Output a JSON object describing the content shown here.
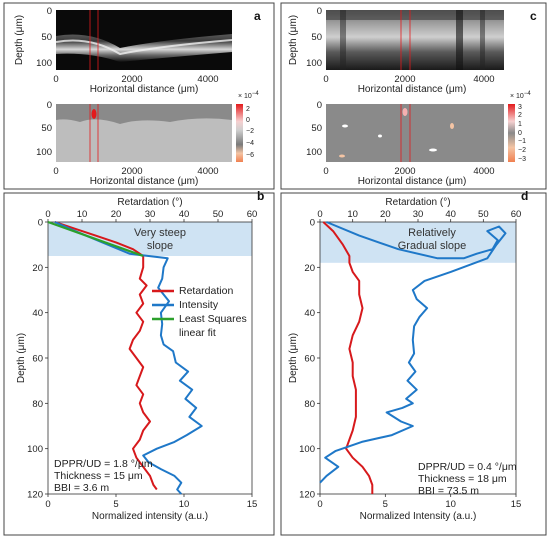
{
  "panels": {
    "a": {
      "letter": "a",
      "top_ylabel": "Depth (μm)",
      "top_xlabel": "Horizontal distance (μm)",
      "bot_xlabel": "Horizontal distance (μm)",
      "top_yticks": [
        "0",
        "50",
        "100"
      ],
      "bot_yticks": [
        "0",
        "50",
        "100"
      ],
      "xticks": [
        "0",
        "2000",
        "4000"
      ],
      "scale_exp": "× 10",
      "scale_pow": "−4",
      "scale_ticks": [
        "2",
        "0",
        "−2",
        "−4",
        "−6"
      ]
    },
    "c": {
      "letter": "c",
      "top_ylabel": "Depth (μm)",
      "top_xlabel": "Horizontal distance (μm)",
      "bot_xlabel": "Horizontal distance (μm)",
      "top_yticks": [
        "0",
        "50",
        "100"
      ],
      "bot_yticks": [
        "0",
        "50",
        "100"
      ],
      "xticks": [
        "0",
        "2000",
        "4000"
      ],
      "scale_exp": "× 10",
      "scale_pow": "−4",
      "scale_ticks": [
        "3",
        "2",
        "1",
        "0",
        "−1",
        "−2",
        "−3"
      ]
    }
  },
  "colors": {
    "retardation": "#d7191c",
    "intensity": "#1f78c8",
    "fit": "#2ca02c",
    "slope_band": "#cfe3f3",
    "depolar_map": "#8a8a8a"
  },
  "chart_data": [
    {
      "type": "line",
      "panel": "b",
      "letter": "b",
      "top_xlabel": "Retardation (°)",
      "bottom_xlabel": "Normalized intensity (a.u.)",
      "ylabel": "Depth (μm)",
      "retardation_range": [
        0,
        60
      ],
      "retardation_ticks": [
        "0",
        "10",
        "20",
        "30",
        "40",
        "50",
        "60"
      ],
      "intensity_range": [
        0,
        15
      ],
      "intensity_ticks": [
        "0",
        "5",
        "10",
        "15"
      ],
      "depth_range": [
        0,
        120
      ],
      "depth_ticks": [
        "0",
        "20",
        "40",
        "60",
        "80",
        "100",
        "120"
      ],
      "slope_band_depth": [
        0,
        15
      ],
      "slope_label": [
        "Very steep",
        "slope"
      ],
      "legend": [
        "Retardation",
        "Intensity",
        "Least Squares linear fit"
      ],
      "legend_lines": [
        "Retardation",
        "Intensity",
        "Least Squares",
        "linear fit"
      ],
      "annotations": [
        "DPPR/UD = 1.8 °/μm",
        "Thickness = 15 μm",
        "BBI =  3.6 m"
      ],
      "series": [
        {
          "name": "Retardation",
          "axis": "retardation",
          "points": [
            [
              2,
              0
            ],
            [
              8,
              3
            ],
            [
              14,
              6
            ],
            [
              20,
              9
            ],
            [
              25,
              12
            ],
            [
              28,
              15
            ],
            [
              28,
              20
            ],
            [
              27,
              25
            ],
            [
              29,
              28
            ],
            [
              27,
              32
            ],
            [
              28,
              36
            ],
            [
              26,
              40
            ],
            [
              28,
              44
            ],
            [
              27,
              48
            ],
            [
              25,
              52
            ],
            [
              24,
              56
            ],
            [
              26,
              60
            ],
            [
              28,
              64
            ],
            [
              27,
              68
            ],
            [
              26,
              72
            ],
            [
              28,
              76
            ],
            [
              27,
              80
            ],
            [
              28,
              84
            ],
            [
              30,
              88
            ],
            [
              28,
              92
            ],
            [
              27,
              96
            ],
            [
              25,
              100
            ],
            [
              26,
              104
            ],
            [
              28,
              108
            ],
            [
              30,
              112
            ],
            [
              31,
              116
            ],
            [
              32,
              118
            ]
          ]
        },
        {
          "name": "Intensity",
          "axis": "intensity",
          "points": [
            [
              0.5,
              0
            ],
            [
              2,
              4
            ],
            [
              4,
              9
            ],
            [
              6,
              14
            ],
            [
              8.8,
              16
            ],
            [
              8.5,
              20
            ],
            [
              8.4,
              25
            ],
            [
              8.1,
              29
            ],
            [
              8.9,
              35
            ],
            [
              8.3,
              40
            ],
            [
              8.4,
              45
            ],
            [
              8.3,
              50
            ],
            [
              8.5,
              54
            ],
            [
              9.2,
              57
            ],
            [
              9.4,
              62
            ],
            [
              10.3,
              66
            ],
            [
              9.7,
              70
            ],
            [
              10.6,
              74
            ],
            [
              10.1,
              78
            ],
            [
              10.9,
              82
            ],
            [
              10.4,
              86
            ],
            [
              11.3,
              90
            ],
            [
              10.2,
              94
            ],
            [
              9.3,
              97
            ],
            [
              8,
              100
            ],
            [
              7,
              103
            ],
            [
              7.4,
              106
            ],
            [
              8.3,
              109
            ],
            [
              9.3,
              112
            ],
            [
              9.8,
              115
            ],
            [
              9.5,
              118
            ],
            [
              9.8,
              120
            ]
          ]
        },
        {
          "name": "Least Squares linear fit",
          "axis": "retardation",
          "points": [
            [
              0,
              0
            ],
            [
              28,
              15
            ]
          ]
        }
      ]
    },
    {
      "type": "line",
      "panel": "d",
      "letter": "d",
      "top_xlabel": "Retardation (°)",
      "bottom_xlabel": "Normalized Intensity (a.u.)",
      "ylabel": "Depth (μm)",
      "retardation_range": [
        0,
        60
      ],
      "retardation_ticks": [
        "0",
        "10",
        "20",
        "30",
        "40",
        "50",
        "60"
      ],
      "intensity_range": [
        0,
        15
      ],
      "intensity_ticks": [
        "0",
        "5",
        "10",
        "15"
      ],
      "depth_range": [
        0,
        120
      ],
      "depth_ticks": [
        "0",
        "20",
        "40",
        "60",
        "80",
        "100",
        "120"
      ],
      "slope_band_depth": [
        0,
        18
      ],
      "slope_label": [
        "Relatively",
        "Gradual slope"
      ],
      "annotations": [
        "DPPR/UD = 0.4 °/μm",
        "Thickness = 18 μm",
        "BBI = 73.5 m"
      ],
      "series": [
        {
          "name": "Retardation",
          "axis": "retardation",
          "points": [
            [
              1,
              0
            ],
            [
              4,
              4
            ],
            [
              7,
              10
            ],
            [
              9,
              15
            ],
            [
              9,
              18
            ],
            [
              10,
              22
            ],
            [
              12,
              26
            ],
            [
              12,
              32
            ],
            [
              13,
              38
            ],
            [
              12,
              44
            ],
            [
              10,
              50
            ],
            [
              9,
              56
            ],
            [
              10,
              62
            ],
            [
              10,
              68
            ],
            [
              11,
              74
            ],
            [
              11,
              80
            ],
            [
              11,
              86
            ],
            [
              10,
              92
            ],
            [
              9,
              96
            ],
            [
              8,
              100
            ],
            [
              10,
              104
            ],
            [
              13,
              108
            ],
            [
              15,
              112
            ],
            [
              16,
              116
            ],
            [
              16,
              120
            ]
          ]
        },
        {
          "name": "Intensity",
          "axis": "intensity",
          "points": [
            [
              0.5,
              0
            ],
            [
              3,
              6
            ],
            [
              6,
              12
            ],
            [
              9,
              16
            ],
            [
              11,
              16
            ],
            [
              12,
              14
            ],
            [
              13.2,
              12
            ],
            [
              13.6,
              8
            ],
            [
              12.8,
              4
            ],
            [
              13.7,
              2
            ],
            [
              14.2,
              5
            ],
            [
              13.5,
              10
            ],
            [
              12.8,
              16
            ],
            [
              10,
              22
            ],
            [
              8,
              26
            ],
            [
              7.1,
              30
            ],
            [
              7.4,
              34
            ],
            [
              8.2,
              38
            ],
            [
              7.6,
              42
            ],
            [
              7.2,
              46
            ],
            [
              7.1,
              52
            ],
            [
              7.2,
              58
            ],
            [
              6.8,
              62
            ],
            [
              7.3,
              66
            ],
            [
              6.7,
              70
            ],
            [
              7.4,
              74
            ],
            [
              6.6,
              78
            ],
            [
              7.1,
              80
            ],
            [
              6.3,
              82
            ],
            [
              5.1,
              84
            ],
            [
              6.2,
              88
            ],
            [
              7.1,
              90
            ],
            [
              5.5,
              94
            ],
            [
              3.2,
              97
            ],
            [
              1.2,
              101
            ],
            [
              0.4,
              104
            ],
            [
              1.4,
              108
            ],
            [
              0.5,
              112
            ],
            [
              0,
              115
            ]
          ]
        }
      ]
    }
  ]
}
